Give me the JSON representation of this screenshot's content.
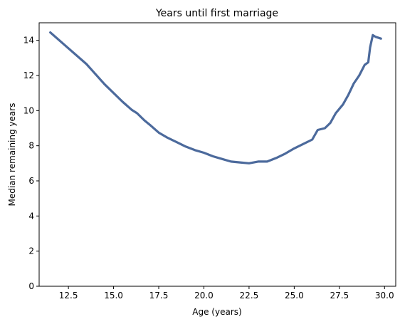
{
  "chart_data": {
    "type": "line",
    "title": "Years until first marriage",
    "xlabel": "Age (years)",
    "ylabel": "Median remaining years",
    "xlim": [
      10.88,
      30.62
    ],
    "ylim": [
      0,
      15
    ],
    "xticks": [
      12.5,
      15.0,
      17.5,
      20.0,
      22.5,
      25.0,
      27.5,
      30.0
    ],
    "xtick_labels": [
      "12.5",
      "15.0",
      "17.5",
      "20.0",
      "22.5",
      "25.0",
      "27.5",
      "30.0"
    ],
    "yticks": [
      0,
      2,
      4,
      6,
      8,
      10,
      12,
      14
    ],
    "ytick_labels": [
      "0",
      "2",
      "4",
      "6",
      "8",
      "10",
      "12",
      "14"
    ],
    "grid": false,
    "series": [
      {
        "color": "#4c6a9c",
        "points": [
          [
            11.5,
            14.45
          ],
          [
            12.5,
            13.55
          ],
          [
            13.5,
            12.65
          ],
          [
            14.5,
            11.5
          ],
          [
            15.5,
            10.5
          ],
          [
            16.0,
            10.05
          ],
          [
            16.3,
            9.85
          ],
          [
            16.7,
            9.45
          ],
          [
            17.0,
            9.2
          ],
          [
            17.5,
            8.75
          ],
          [
            18.0,
            8.45
          ],
          [
            18.5,
            8.2
          ],
          [
            19.0,
            7.95
          ],
          [
            19.5,
            7.75
          ],
          [
            20.0,
            7.6
          ],
          [
            20.5,
            7.4
          ],
          [
            21.0,
            7.25
          ],
          [
            21.5,
            7.1
          ],
          [
            22.0,
            7.05
          ],
          [
            22.5,
            7.0
          ],
          [
            23.0,
            7.1
          ],
          [
            23.5,
            7.1
          ],
          [
            24.0,
            7.3
          ],
          [
            24.5,
            7.55
          ],
          [
            25.0,
            7.85
          ],
          [
            25.5,
            8.1
          ],
          [
            26.0,
            8.35
          ],
          [
            26.3,
            8.9
          ],
          [
            26.7,
            9.0
          ],
          [
            27.0,
            9.3
          ],
          [
            27.3,
            9.85
          ],
          [
            27.7,
            10.35
          ],
          [
            28.0,
            10.9
          ],
          [
            28.3,
            11.55
          ],
          [
            28.6,
            12.0
          ],
          [
            28.9,
            12.6
          ],
          [
            29.1,
            12.75
          ],
          [
            29.2,
            13.6
          ],
          [
            29.35,
            14.3
          ],
          [
            29.5,
            14.2
          ],
          [
            29.8,
            14.1
          ]
        ]
      }
    ]
  }
}
